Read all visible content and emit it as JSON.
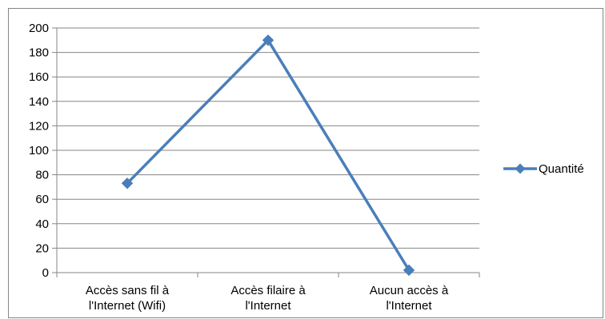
{
  "chart_data": {
    "type": "line",
    "categories": [
      [
        "Accès sans fil à",
        "l'Internet (Wifi)"
      ],
      [
        "Accès filaire à",
        "l'Internet"
      ],
      [
        "Aucun accès à",
        "l'Internet"
      ]
    ],
    "series": [
      {
        "name": "Quantité",
        "values": [
          73,
          190,
          2
        ],
        "color": "#4A7EBB",
        "marker": "diamond"
      }
    ],
    "ylim": [
      0,
      200
    ],
    "yticks": [
      0,
      20,
      40,
      60,
      80,
      100,
      120,
      140,
      160,
      180,
      200
    ],
    "grid": true,
    "legend_position": "right",
    "title": "",
    "xlabel": "",
    "ylabel": ""
  }
}
